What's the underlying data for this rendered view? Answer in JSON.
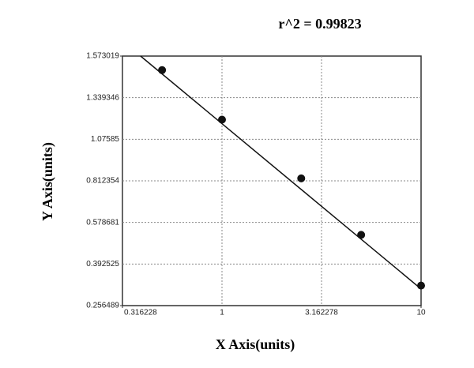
{
  "chart_data": {
    "type": "scatter",
    "title": "r^2 = 0.99823",
    "x_label": "X Axis(units)",
    "y_label": "Y Axis(units)",
    "x": [
      0.5,
      1,
      2.5,
      5,
      10
    ],
    "values": [
      1.494,
      1.2,
      0.828,
      0.523,
      0.322
    ],
    "color": "#111111",
    "fit": {
      "x": [
        0.39,
        10
      ],
      "y": [
        1.573,
        0.311
      ],
      "color": "#111111"
    },
    "x_log": true,
    "xlim": [
      0.316228,
      10
    ],
    "xticks": [
      0.316228,
      1,
      3.162278,
      10
    ],
    "ylim": [
      0.256489,
      1.573019
    ],
    "y_scale": "even-ticks",
    "yticks": [
      0.256489,
      0.392525,
      0.578681,
      0.812354,
      1.07585,
      1.339346,
      1.573019
    ],
    "grid": true
  }
}
